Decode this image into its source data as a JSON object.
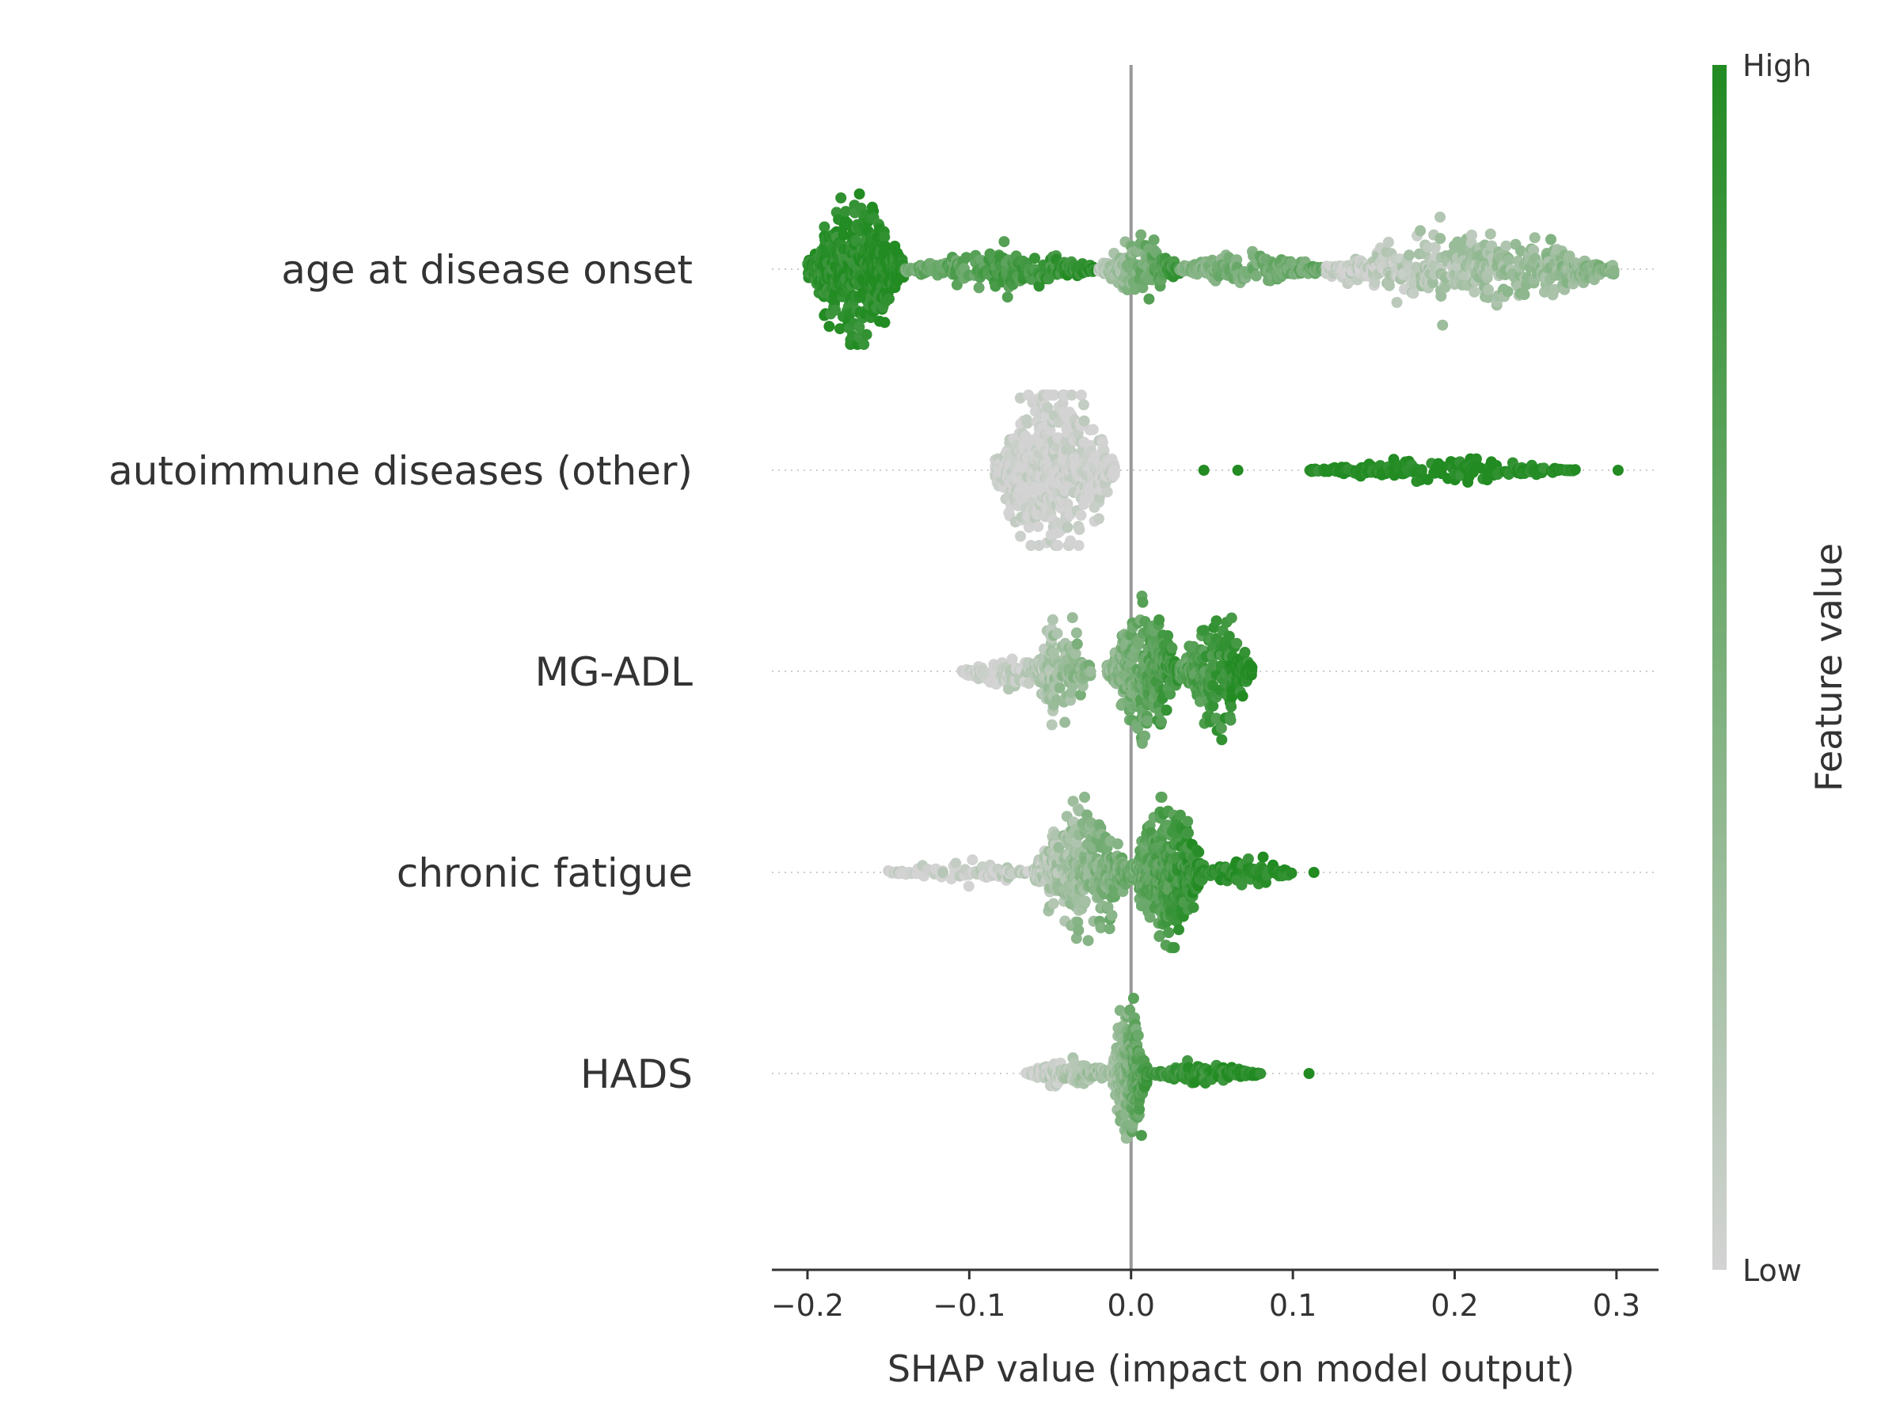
{
  "chart_data": {
    "type": "scatter",
    "subtype": "shap-beeswarm",
    "xlabel": "SHAP value (impact on model output)",
    "xlim": [
      -0.222,
      0.326
    ],
    "xticks": [
      -0.2,
      -0.1,
      0.0,
      0.1,
      0.2,
      0.3
    ],
    "xtick_labels": [
      "−0.2",
      "−0.1",
      "0.0",
      "0.1",
      "0.2",
      "0.3"
    ],
    "grid": false,
    "colorbar": {
      "label": "Feature value",
      "high_label": "High",
      "low_label": "Low",
      "high_color": "#228B22",
      "low_color": "#D3D3D3"
    },
    "zero_line_color": "#999999",
    "features": [
      {
        "name": "age at disease onset",
        "segments": [
          {
            "from": -0.2,
            "to": -0.14,
            "peak": 0.04,
            "count": 520,
            "v_from": 0.92,
            "v_to": 1.0
          },
          {
            "from": -0.14,
            "to": -0.02,
            "peak": 0.012,
            "count": 260,
            "v_from": 0.55,
            "v_to": 0.95
          },
          {
            "from": -0.02,
            "to": 0.03,
            "peak": 0.017,
            "count": 160,
            "v_from": 0.1,
            "v_to": 0.9
          },
          {
            "from": 0.03,
            "to": 0.12,
            "peak": 0.01,
            "count": 190,
            "v_from": 0.45,
            "v_to": 0.6
          },
          {
            "from": 0.12,
            "to": 0.3,
            "peak": 0.021,
            "count": 460,
            "v_from": 0.02,
            "v_to": 0.45
          }
        ]
      },
      {
        "name": "autoimmune diseases (other)",
        "segments": [
          {
            "from": -0.084,
            "to": -0.01,
            "peak": 0.05,
            "count": 620,
            "v_from": 0.0,
            "v_to": 0.0
          },
          {
            "from": 0.11,
            "to": 0.275,
            "peak": 0.006,
            "count": 230,
            "v_from": 1.0,
            "v_to": 1.0
          }
        ],
        "outliers": [
          {
            "x": 0.045,
            "v": 1.0
          },
          {
            "x": 0.066,
            "v": 1.0
          },
          {
            "x": 0.301,
            "v": 1.0
          }
        ]
      },
      {
        "name": "MG-ADL",
        "segments": [
          {
            "from": -0.105,
            "to": -0.05,
            "peak": 0.009,
            "count": 110,
            "v_from": 0.0,
            "v_to": 0.15
          },
          {
            "from": -0.06,
            "to": -0.025,
            "peak": 0.032,
            "count": 150,
            "v_from": 0.15,
            "v_to": 0.45
          },
          {
            "from": -0.015,
            "to": 0.03,
            "peak": 0.038,
            "count": 330,
            "v_from": 0.35,
            "v_to": 0.9
          },
          {
            "from": 0.03,
            "to": 0.075,
            "peak": 0.028,
            "count": 260,
            "v_from": 0.65,
            "v_to": 1.0
          }
        ]
      },
      {
        "name": "chronic fatigue",
        "segments": [
          {
            "from": -0.15,
            "to": -0.06,
            "peak": 0.006,
            "count": 70,
            "v_from": 0.0,
            "v_to": 0.1
          },
          {
            "from": -0.06,
            "to": 0.0,
            "peak": 0.036,
            "count": 430,
            "v_from": 0.1,
            "v_to": 0.6
          },
          {
            "from": 0.0,
            "to": 0.045,
            "peak": 0.038,
            "count": 420,
            "v_from": 0.55,
            "v_to": 0.95
          },
          {
            "from": 0.045,
            "to": 0.1,
            "peak": 0.008,
            "count": 110,
            "v_from": 0.9,
            "v_to": 1.0
          }
        ],
        "outliers": [
          {
            "x": -0.148,
            "v": 0.0
          },
          {
            "x": -0.137,
            "v": 0.0
          },
          {
            "x": 0.113,
            "v": 1.0
          }
        ]
      },
      {
        "name": "HADS",
        "segments": [
          {
            "from": -0.065,
            "to": -0.01,
            "peak": 0.008,
            "count": 150,
            "v_from": 0.0,
            "v_to": 0.35
          },
          {
            "from": -0.012,
            "to": 0.01,
            "peak": 0.04,
            "count": 380,
            "v_from": 0.2,
            "v_to": 0.8
          },
          {
            "from": 0.01,
            "to": 0.08,
            "peak": 0.005,
            "count": 200,
            "v_from": 0.8,
            "v_to": 1.0
          }
        ],
        "outliers": [
          {
            "x": -0.059,
            "v": 0.0
          },
          {
            "x": 0.11,
            "v": 1.0
          }
        ]
      }
    ]
  }
}
